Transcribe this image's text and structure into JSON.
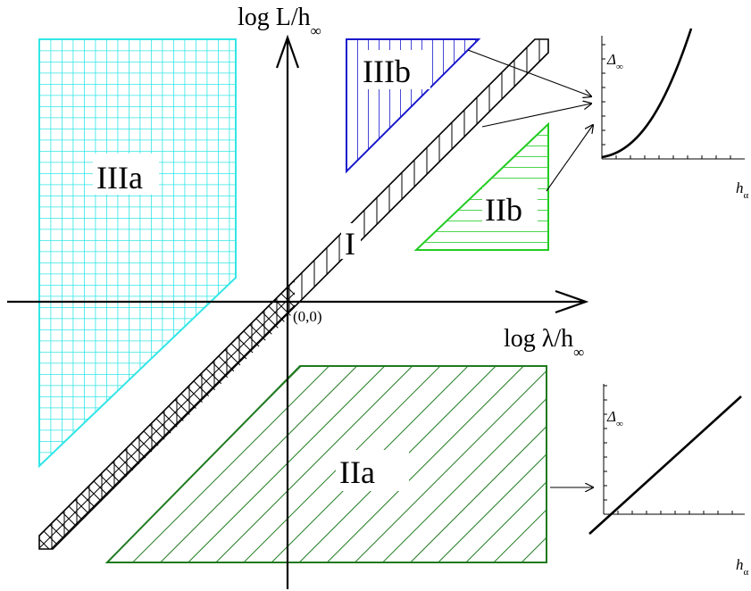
{
  "regions": {
    "IIIa": "IIIa",
    "IIIb": "IIIb",
    "I": "I",
    "IIb": "IIb",
    "IIa": "IIa"
  },
  "axes": {
    "y_label_main": "log L/h",
    "y_label_sub": "∞",
    "x_label_main": "log λ/h",
    "x_label_sub": "∞",
    "origin": "(0,0)"
  },
  "insets": {
    "top": {
      "ylabel": "Δ",
      "ylabel_sub": "∞",
      "xlabel": "h",
      "xlabel_sub": "α",
      "curve": "convex"
    },
    "bottom": {
      "ylabel": "Δ",
      "ylabel_sub": "∞",
      "xlabel": "h",
      "xlabel_sub": "α",
      "curve": "linear"
    }
  },
  "colors": {
    "IIIa": "#33e6e6",
    "IIIb": "#1a1acc",
    "IIb": "#22cc22",
    "IIa": "#1f7a1f",
    "band": "#000000"
  }
}
